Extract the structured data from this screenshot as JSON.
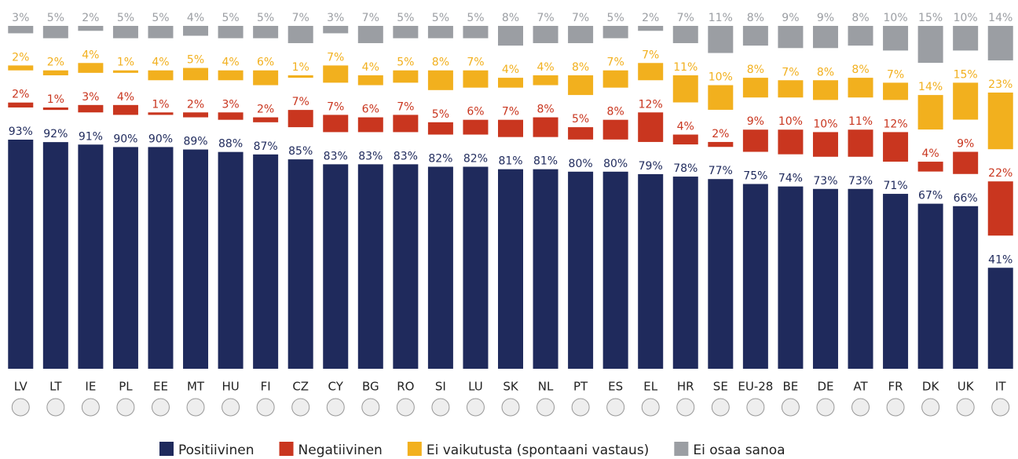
{
  "chart_data": {
    "type": "stacked-bar",
    "categories": [
      "LV",
      "LT",
      "IE",
      "PL",
      "EE",
      "MT",
      "HU",
      "FI",
      "CZ",
      "CY",
      "BG",
      "RO",
      "SI",
      "LU",
      "SK",
      "NL",
      "PT",
      "ES",
      "EL",
      "HR",
      "SE",
      "EU-28",
      "BE",
      "DE",
      "AT",
      "FR",
      "DK",
      "UK",
      "IT"
    ],
    "series": [
      {
        "name": "Positiivinen",
        "color": "#1f2a5c",
        "values": [
          93,
          92,
          91,
          90,
          90,
          89,
          88,
          87,
          85,
          83,
          83,
          83,
          82,
          82,
          81,
          81,
          80,
          80,
          79,
          78,
          77,
          75,
          74,
          73,
          73,
          71,
          67,
          66,
          41
        ],
        "value_labels": [
          "93%",
          "92%",
          "91%",
          "90%",
          "90%",
          "89%",
          "88%",
          "87%",
          "85%",
          "83%",
          "83%",
          "83%",
          "82%",
          "82%",
          "81%",
          "81%",
          "80%",
          "80%",
          "79%",
          "78%",
          "77%",
          "75%",
          "74%",
          "73%",
          "73%",
          "71%",
          "67%",
          "66%",
          "41%"
        ]
      },
      {
        "name": "Negatiivinen",
        "color": "#c9361f",
        "values": [
          2,
          1,
          3,
          4,
          1,
          2,
          3,
          2,
          7,
          7,
          6,
          7,
          5,
          6,
          7,
          8,
          5,
          8,
          12,
          4,
          2,
          9,
          10,
          10,
          11,
          12,
          4,
          9,
          22
        ],
        "value_labels": [
          "2%",
          "1%",
          "3%",
          "4%",
          "1%",
          "2%",
          "3%",
          "2%",
          "7%",
          "7%",
          "6%",
          "7%",
          "5%",
          "6%",
          "7%",
          "8%",
          "5%",
          "8%",
          "12%",
          "4%",
          "2%",
          "9%",
          "10%",
          "10%",
          "11%",
          "12%",
          "4%",
          "9%",
          "22%"
        ]
      },
      {
        "name": "Ei vaikutusta (spontaani vastaus)",
        "color": "#f2b01e",
        "values": [
          2,
          2,
          4,
          1,
          4,
          5,
          4,
          6,
          1,
          7,
          4,
          5,
          8,
          7,
          4,
          4,
          8,
          7,
          7,
          11,
          10,
          8,
          7,
          8,
          8,
          7,
          14,
          15,
          23
        ],
        "value_labels": [
          "2%",
          "2%",
          "4%",
          "1%",
          "4%",
          "5%",
          "4%",
          "6%",
          "1%",
          "7%",
          "4%",
          "5%",
          "8%",
          "7%",
          "4%",
          "4%",
          "8%",
          "7%",
          "7%",
          "11%",
          "10%",
          "8%",
          "7%",
          "8%",
          "8%",
          "7%",
          "14%",
          "15%",
          "23%"
        ]
      },
      {
        "name": "Ei osaa sanoa",
        "color": "#9b9ea3",
        "values": [
          3,
          5,
          2,
          5,
          5,
          4,
          5,
          5,
          7,
          3,
          7,
          5,
          5,
          5,
          8,
          7,
          7,
          5,
          2,
          7,
          11,
          8,
          9,
          9,
          8,
          10,
          15,
          10,
          14
        ],
        "value_labels": [
          "3%",
          "5%",
          "2%",
          "5%",
          "5%",
          "4%",
          "5%",
          "5%",
          "7%",
          "3%",
          "7%",
          "5%",
          "5%",
          "5%",
          "8%",
          "7%",
          "7%",
          "5%",
          "2%",
          "7%",
          "11%",
          "8%",
          "9%",
          "9%",
          "8%",
          "10%",
          "15%",
          "10%",
          "14%"
        ]
      }
    ]
  }
}
